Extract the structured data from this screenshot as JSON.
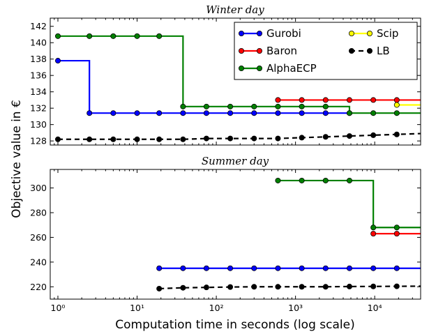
{
  "figure": {
    "ylabel": "Objective value in €",
    "xlabel": "Computation time in seconds (log scale)"
  },
  "legend": [
    {
      "name": "Gurobi",
      "color": "#0000ff",
      "dashed": false
    },
    {
      "name": "Scip",
      "color": "#ffff00",
      "dashed": false
    },
    {
      "name": "Baron",
      "color": "#ff0000",
      "dashed": false
    },
    {
      "name": "LB",
      "color": "#000000",
      "dashed": true
    },
    {
      "name": "AlphaECP",
      "color": "#008000",
      "dashed": false
    }
  ],
  "chart_data": [
    {
      "type": "line",
      "title": "Winter day",
      "xscale": "log",
      "xlim": [
        0.8,
        38000
      ],
      "ylim": [
        127.5,
        143
      ],
      "yticks": [
        128,
        130,
        132,
        134,
        136,
        138,
        140,
        142
      ],
      "xticks": [
        1,
        10,
        100,
        1000,
        10000
      ],
      "xtick_labels": [
        "10⁰",
        "10¹",
        "10²",
        "10³",
        "10⁴"
      ],
      "grid": false,
      "legend_position": "upper-right",
      "series": [
        {
          "name": "Gurobi",
          "color": "#0000ff",
          "step": true,
          "dashed": false,
          "x": [
            1,
            2.5,
            5,
            10,
            19,
            38,
            75,
            150,
            300,
            600,
            1200,
            2400,
            4800
          ],
          "y": [
            137.8,
            131.4,
            131.4,
            131.4,
            131.4,
            131.4,
            131.4,
            131.4,
            131.4,
            131.4,
            131.4,
            131.4,
            131.4
          ],
          "end_x": 4800
        },
        {
          "name": "Baron",
          "color": "#ff0000",
          "step": true,
          "dashed": false,
          "x": [
            600,
            1200,
            2400,
            4800,
            9600,
            19000
          ],
          "y": [
            133,
            133,
            133,
            133,
            133,
            133
          ],
          "end_x": 38000
        },
        {
          "name": "AlphaECP",
          "color": "#008000",
          "step": true,
          "dashed": false,
          "x": [
            1,
            2.5,
            5,
            10,
            19,
            38,
            75,
            150,
            300,
            600,
            1200,
            2400,
            4800,
            9600,
            19000
          ],
          "y": [
            140.8,
            140.8,
            140.8,
            140.8,
            140.8,
            132.2,
            132.2,
            132.2,
            132.2,
            132.2,
            132.2,
            132.2,
            131.4,
            131.4,
            131.4
          ],
          "end_x": 38000
        },
        {
          "name": "Scip",
          "color": "#ffff00",
          "step": true,
          "dashed": false,
          "x": [
            19000
          ],
          "y": [
            132.4
          ],
          "end_x": 38000
        },
        {
          "name": "LB",
          "color": "#000000",
          "step": false,
          "dashed": true,
          "x": [
            1,
            2.5,
            5,
            10,
            19,
            38,
            75,
            150,
            300,
            600,
            1200,
            2400,
            4800,
            9600,
            19000
          ],
          "y": [
            128.2,
            128.2,
            128.2,
            128.2,
            128.2,
            128.2,
            128.3,
            128.3,
            128.3,
            128.3,
            128.4,
            128.5,
            128.6,
            128.7,
            128.8
          ],
          "end_x": 38000,
          "end_y": 128.9
        }
      ]
    },
    {
      "type": "line",
      "title": "Summer day",
      "xscale": "log",
      "xlim": [
        0.8,
        38000
      ],
      "ylim": [
        210,
        315
      ],
      "yticks": [
        220,
        240,
        260,
        280,
        300
      ],
      "xticks": [
        1,
        10,
        100,
        1000,
        10000
      ],
      "xtick_labels": [
        "10⁰",
        "10¹",
        "10²",
        "10³",
        "10⁴"
      ],
      "grid": false,
      "series": [
        {
          "name": "Gurobi",
          "color": "#0000ff",
          "step": true,
          "dashed": false,
          "x": [
            19,
            38,
            75,
            150,
            300,
            600,
            1200,
            2400,
            4800,
            9600,
            19000
          ],
          "y": [
            235,
            235,
            235,
            235,
            235,
            235,
            235,
            235,
            235,
            235,
            235
          ],
          "end_x": 38000
        },
        {
          "name": "Baron",
          "color": "#ff0000",
          "step": true,
          "dashed": false,
          "x": [
            9600,
            19000
          ],
          "y": [
            263,
            263
          ],
          "end_x": 38000
        },
        {
          "name": "AlphaECP",
          "color": "#008000",
          "step": true,
          "dashed": false,
          "x": [
            600,
            1200,
            2400,
            4800,
            9600,
            19000
          ],
          "y": [
            306,
            306,
            306,
            306,
            268,
            268
          ],
          "end_x": 38000
        },
        {
          "name": "LB",
          "color": "#000000",
          "step": false,
          "dashed": true,
          "x": [
            19,
            38,
            75,
            150,
            300,
            600,
            1200,
            2400,
            4800,
            9600,
            19000
          ],
          "y": [
            218.5,
            219.2,
            219.5,
            219.8,
            220,
            220,
            220,
            220,
            220.2,
            220.3,
            220.4
          ],
          "end_x": 38000,
          "end_y": 220.5
        }
      ]
    }
  ]
}
